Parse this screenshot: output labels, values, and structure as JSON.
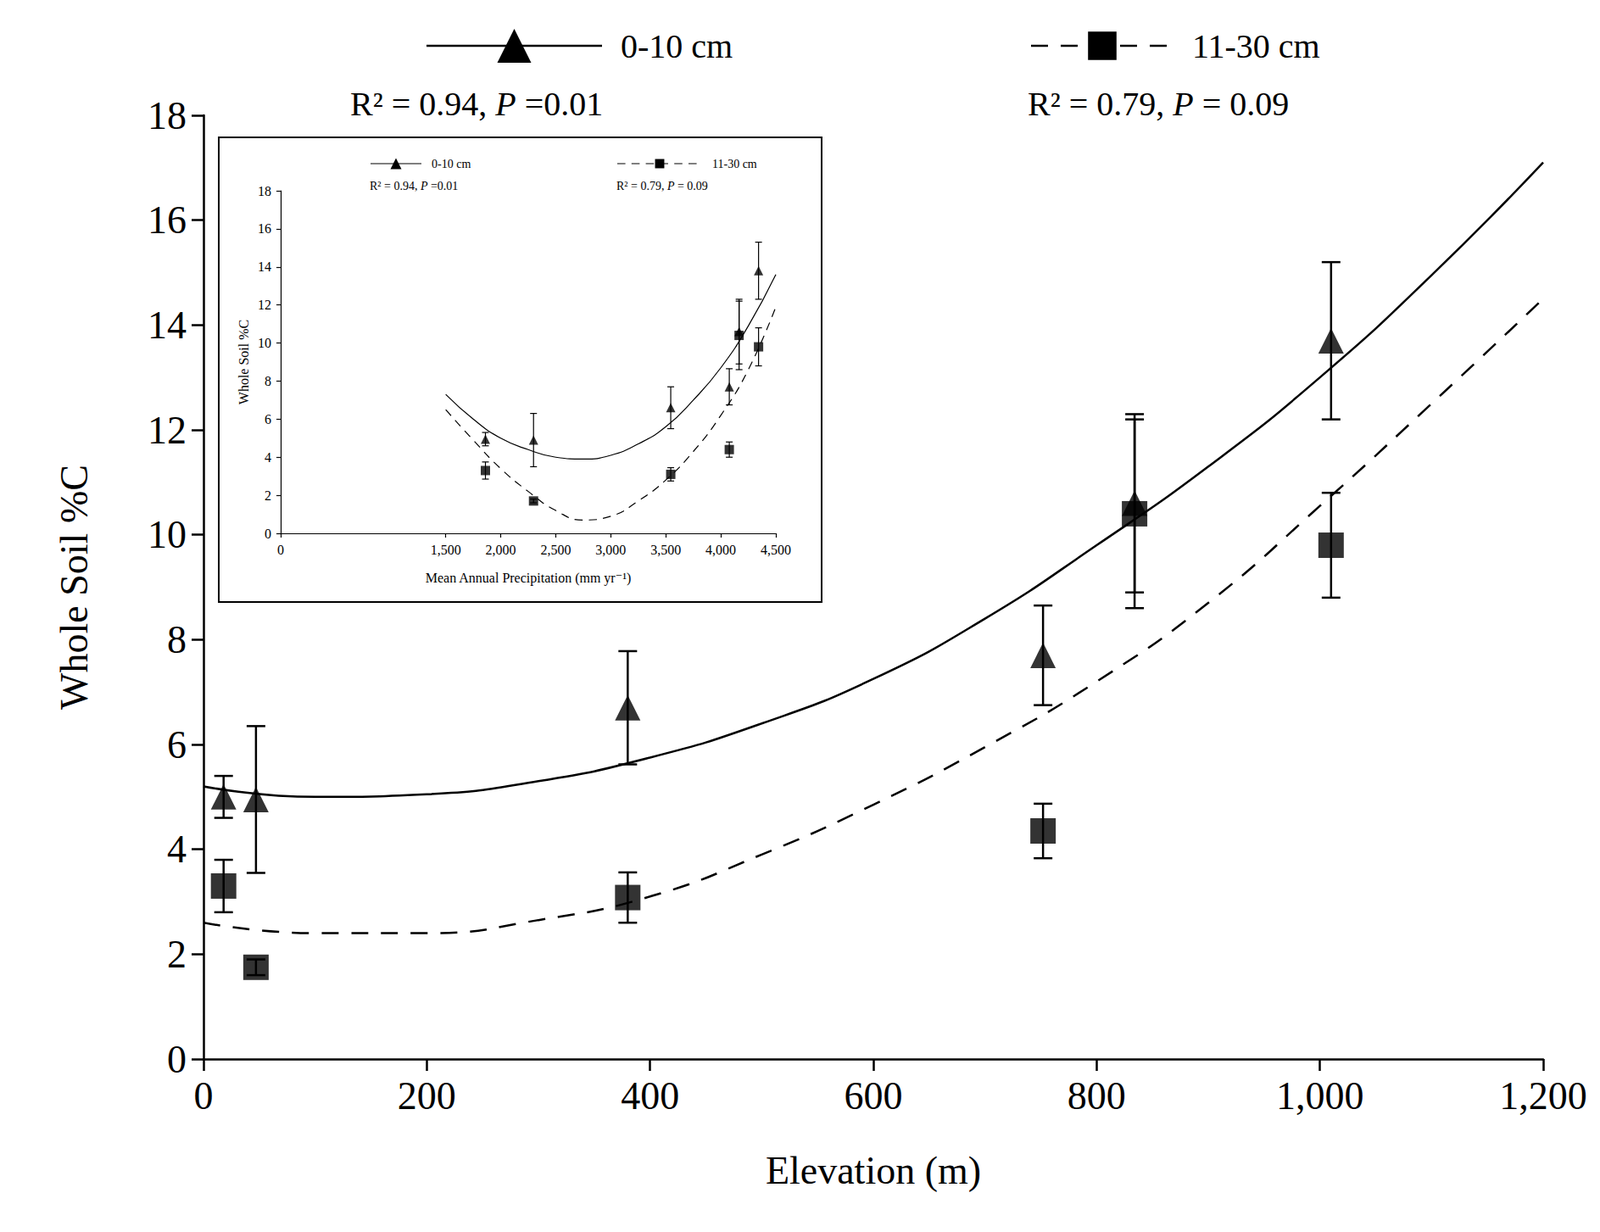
{
  "chart_data": [
    {
      "type": "scatter",
      "x_label": "Elevation (m)",
      "y_label": "Whole Soil %C",
      "xlim": [
        0,
        1200
      ],
      "xticks": [
        0,
        200,
        400,
        600,
        800,
        1000,
        1200
      ],
      "ylim": [
        0,
        18
      ],
      "yticks": [
        0,
        2,
        4,
        6,
        8,
        10,
        12,
        14,
        16,
        18
      ],
      "grid": false,
      "legend": "top",
      "series": [
        {
          "name": "0-10 cm",
          "stats": "R² = 0.94, P =0.01",
          "color": "#000000",
          "marker": "triangle",
          "line_style": "solid",
          "x": [
            18,
            47,
            380,
            752,
            834,
            1010
          ],
          "values": [
            5.0,
            4.95,
            6.7,
            7.7,
            10.6,
            13.7
          ],
          "errors": [
            0.4,
            1.4,
            1.08,
            0.95,
            1.7,
            1.5
          ],
          "fit": {
            "x": [
              0,
              100,
              200,
              300,
              400,
              500,
              600,
              700,
              800,
              900,
              1000,
              1100,
              1200
            ],
            "values": [
              5.2,
              5.0,
              5.05,
              5.3,
              5.75,
              6.4,
              7.25,
              8.4,
              9.8,
              11.3,
              13.0,
              14.95,
              17.1
            ]
          }
        },
        {
          "name": "11-30 cm",
          "stats": "R² = 0.79, P = 0.09",
          "color": "#000000",
          "marker": "square",
          "line_style": "dashed",
          "x": [
            18,
            47,
            380,
            752,
            834,
            1010
          ],
          "values": [
            3.3,
            1.75,
            3.08,
            4.35,
            10.4,
            9.8
          ],
          "errors": [
            0.5,
            0.15,
            0.48,
            0.52,
            1.8,
            1.0
          ],
          "fit": {
            "x": [
              0,
              100,
              200,
              300,
              400,
              500,
              600,
              700,
              800,
              900,
              1000,
              1100,
              1200
            ],
            "values": [
              2.6,
              2.4,
              2.4,
              2.65,
              3.1,
              3.9,
              4.85,
              5.95,
              7.2,
              8.7,
              10.55,
              12.5,
              14.5
            ]
          }
        }
      ]
    },
    {
      "type": "scatter",
      "x_label": "Mean Annual Precipitation (mm yr⁻¹)",
      "y_label": "Whole Soil %C",
      "xlim": [
        0,
        4500
      ],
      "xticks": [
        0,
        1500,
        2000,
        2500,
        3000,
        3500,
        4000,
        4500
      ],
      "ylim": [
        0,
        18
      ],
      "yticks": [
        0,
        2,
        4,
        6,
        8,
        10,
        12,
        14,
        16,
        18
      ],
      "grid": false,
      "legend": "top",
      "series": [
        {
          "name": "0-10 cm",
          "stats": "R² = 0.94, P =0.01",
          "color": "#000000",
          "marker": "triangle",
          "line_style": "solid",
          "x": [
            1861,
            2298,
            3545,
            4077,
            4166,
            4343
          ],
          "values": [
            4.95,
            4.9,
            6.6,
            7.7,
            10.6,
            13.8
          ],
          "errors": [
            0.35,
            1.4,
            1.1,
            0.95,
            1.7,
            1.5
          ],
          "fit": {
            "x": [
              1500,
              1750,
              2000,
              2250,
              2500,
              2750,
              3000,
              3250,
              3500,
              3750,
              4000,
              4250,
              4500
            ],
            "values": [
              7.3,
              6.0,
              5.0,
              4.4,
              4.0,
              3.9,
              4.1,
              4.7,
              5.6,
              7.0,
              8.7,
              10.9,
              13.6
            ]
          }
        },
        {
          "name": "11-30 cm",
          "stats": "R² = 0.79, P = 0.09",
          "color": "#000000",
          "marker": "square",
          "line_style": "dashed",
          "x": [
            1861,
            2298,
            3545,
            4077,
            4166,
            4343
          ],
          "values": [
            3.3,
            1.7,
            3.1,
            4.4,
            10.4,
            9.8
          ],
          "errors": [
            0.45,
            0.1,
            0.35,
            0.4,
            1.8,
            1.0
          ],
          "fit": {
            "x": [
              1500,
              1750,
              2000,
              2250,
              2500,
              2750,
              3000,
              3250,
              3500,
              3750,
              4000,
              4250,
              4500
            ],
            "values": [
              6.5,
              4.9,
              3.4,
              2.2,
              1.2,
              0.7,
              0.9,
              1.7,
              2.8,
              4.3,
              6.2,
              8.6,
              11.9
            ]
          }
        }
      ]
    }
  ]
}
